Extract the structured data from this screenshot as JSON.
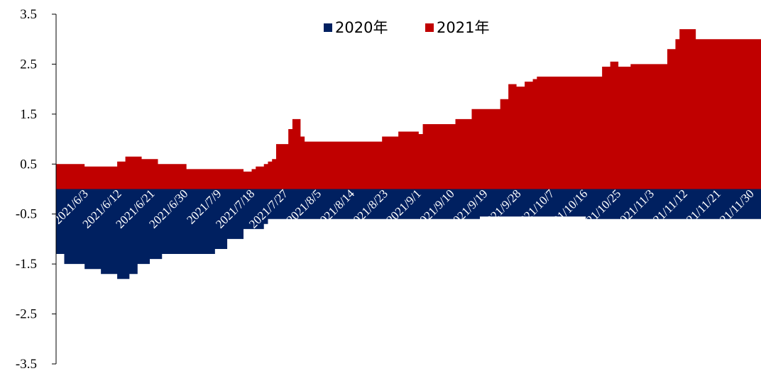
{
  "chart_data": {
    "type": "area",
    "ylim": [
      -3.5,
      3.5
    ],
    "yticks": [
      "3.5",
      "2.5",
      "1.5",
      "0.5",
      "-0.5",
      "-1.5",
      "-2.5",
      "-3.5"
    ],
    "grid": false,
    "legend_position": "top-center",
    "x_tick_labels": [
      "2021/6/3",
      "2021/6/12",
      "2021/6/21",
      "2021/6/30",
      "2021/7/9",
      "2021/7/18",
      "2021/7/27",
      "2021/8/5",
      "2021/8/14",
      "2021/8/23",
      "2021/9/1",
      "2021/9/10",
      "2021/9/19",
      "2021/9/28",
      "2021/10/7",
      "2021/10/16",
      "2021/10/25",
      "2021/11/3",
      "2021/11/12",
      "2021/11/21",
      "2021/11/30"
    ],
    "series": [
      {
        "name": "2020年",
        "color": "#002060",
        "values": [
          -1.3,
          -1.3,
          -1.5,
          -1.5,
          -1.5,
          -1.5,
          -1.5,
          -1.6,
          -1.6,
          -1.6,
          -1.6,
          -1.7,
          -1.7,
          -1.7,
          -1.7,
          -1.8,
          -1.8,
          -1.8,
          -1.7,
          -1.7,
          -1.5,
          -1.5,
          -1.5,
          -1.4,
          -1.4,
          -1.4,
          -1.3,
          -1.3,
          -1.3,
          -1.3,
          -1.3,
          -1.3,
          -1.3,
          -1.3,
          -1.3,
          -1.3,
          -1.3,
          -1.3,
          -1.3,
          -1.2,
          -1.2,
          -1.2,
          -1.0,
          -1.0,
          -1.0,
          -1.0,
          -0.8,
          -0.8,
          -0.8,
          -0.8,
          -0.8,
          -0.7,
          -0.6,
          -0.6,
          -0.6,
          -0.6,
          -0.6,
          -0.6,
          -0.6,
          -0.6,
          -0.6,
          -0.6,
          -0.6,
          -0.6,
          -0.6,
          -0.6,
          -0.6,
          -0.6,
          -0.6,
          -0.6,
          -0.6,
          -0.6,
          -0.6,
          -0.6,
          -0.6,
          -0.6,
          -0.6,
          -0.6,
          -0.6,
          -0.6,
          -0.6,
          -0.6,
          -0.6,
          -0.6,
          -0.6,
          -0.6,
          -0.6,
          -0.6,
          -0.6,
          -0.6,
          -0.6,
          -0.6,
          -0.6,
          -0.6,
          -0.6,
          -0.6,
          -0.6,
          -0.6,
          -0.6,
          -0.6,
          -0.6,
          -0.6,
          -0.6,
          -0.6,
          -0.55,
          -0.55,
          -0.55,
          -0.55,
          -0.55,
          -0.55,
          -0.55,
          -0.55,
          -0.55,
          -0.55,
          -0.55,
          -0.55,
          -0.55,
          -0.55,
          -0.55,
          -0.55,
          -0.55,
          -0.55,
          -0.55,
          -0.55,
          -0.55,
          -0.55,
          -0.55,
          -0.55,
          -0.55,
          -0.55,
          -0.6,
          -0.6,
          -0.6,
          -0.6,
          -0.6,
          -0.6,
          -0.6,
          -0.6,
          -0.6,
          -0.6,
          -0.6,
          -0.6,
          -0.6,
          -0.6,
          -0.6,
          -0.6,
          -0.6,
          -0.6,
          -0.6,
          -0.6,
          -0.6,
          -0.6,
          -0.6,
          -0.6,
          -0.6,
          -0.6,
          -0.6,
          -0.6,
          -0.6,
          -0.6,
          -0.6,
          -0.6,
          -0.6,
          -0.6,
          -0.6,
          -0.6,
          -0.6,
          -0.6,
          -0.6,
          -0.6,
          -0.6,
          -0.6,
          -0.6
        ]
      },
      {
        "name": "2021年",
        "color": "#c00000",
        "values": [
          0.5,
          0.5,
          0.5,
          0.5,
          0.5,
          0.5,
          0.5,
          0.45,
          0.45,
          0.45,
          0.45,
          0.45,
          0.45,
          0.45,
          0.45,
          0.55,
          0.55,
          0.65,
          0.65,
          0.65,
          0.65,
          0.6,
          0.6,
          0.6,
          0.6,
          0.5,
          0.5,
          0.5,
          0.5,
          0.5,
          0.5,
          0.5,
          0.4,
          0.4,
          0.4,
          0.4,
          0.4,
          0.4,
          0.4,
          0.4,
          0.4,
          0.4,
          0.4,
          0.4,
          0.4,
          0.4,
          0.35,
          0.35,
          0.4,
          0.45,
          0.45,
          0.5,
          0.55,
          0.6,
          0.9,
          0.9,
          0.9,
          1.2,
          1.4,
          1.4,
          1.05,
          0.95,
          0.95,
          0.95,
          0.95,
          0.95,
          0.95,
          0.95,
          0.95,
          0.95,
          0.95,
          0.95,
          0.95,
          0.95,
          0.95,
          0.95,
          0.95,
          0.95,
          0.95,
          0.95,
          1.05,
          1.05,
          1.05,
          1.05,
          1.15,
          1.15,
          1.15,
          1.15,
          1.15,
          1.1,
          1.3,
          1.3,
          1.3,
          1.3,
          1.3,
          1.3,
          1.3,
          1.3,
          1.4,
          1.4,
          1.4,
          1.4,
          1.6,
          1.6,
          1.6,
          1.6,
          1.6,
          1.6,
          1.6,
          1.8,
          1.8,
          2.1,
          2.1,
          2.05,
          2.05,
          2.15,
          2.15,
          2.2,
          2.25,
          2.25,
          2.25,
          2.25,
          2.25,
          2.25,
          2.25,
          2.25,
          2.25,
          2.25,
          2.25,
          2.25,
          2.25,
          2.25,
          2.25,
          2.25,
          2.45,
          2.45,
          2.55,
          2.55,
          2.45,
          2.45,
          2.45,
          2.5,
          2.5,
          2.5,
          2.5,
          2.5,
          2.5,
          2.5,
          2.5,
          2.5,
          2.8,
          2.8,
          3.0,
          3.2,
          3.2,
          3.2,
          3.2,
          3.0,
          3.0,
          3.0,
          3.0,
          3.0,
          3.0,
          3.0,
          3.0,
          3.0,
          3.0,
          3.0,
          3.0,
          3.0,
          3.0,
          3.0,
          3.0
        ]
      }
    ]
  }
}
